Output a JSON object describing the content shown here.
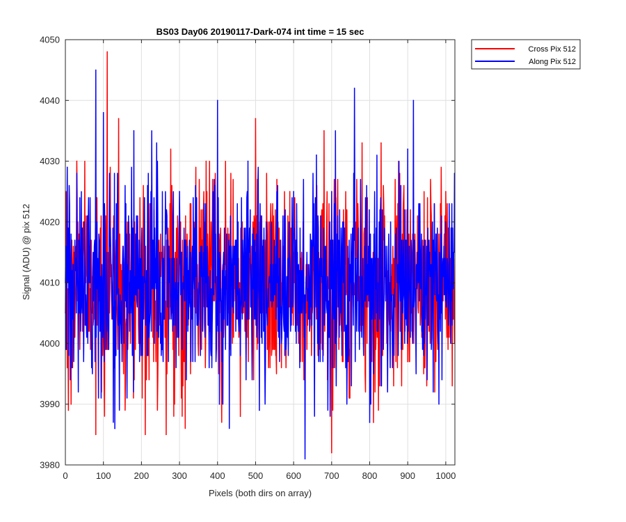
{
  "chart_data": {
    "type": "line",
    "title": "BS03 Day06 20190117-Dark-074 int time = 15 sec",
    "xlabel": "Pixels (both dirs on array)",
    "ylabel": "Signal (ADU) @ pix 512",
    "xlim": [
      0,
      1024
    ],
    "ylim": [
      3980,
      4050
    ],
    "xticks": [
      0,
      100,
      200,
      300,
      400,
      500,
      600,
      700,
      800,
      900,
      1000
    ],
    "yticks": [
      3980,
      3990,
      4000,
      4010,
      4020,
      4030,
      4040,
      4050
    ],
    "grid": true,
    "legend_position": "outside-top-right",
    "noise_model": {
      "mean": 4010,
      "sd": 8
    },
    "series": [
      {
        "name": "Cross Pix 512",
        "color": "#ff0000",
        "points": [
          [
            0,
            4005
          ],
          [
            5,
            3996
          ],
          [
            8,
            3989
          ],
          [
            15,
            3990
          ],
          [
            30,
            4030
          ],
          [
            80,
            3985
          ],
          [
            110,
            4048
          ],
          [
            140,
            4037
          ],
          [
            210,
            3985
          ],
          [
            265,
            3985
          ],
          [
            300,
            4017
          ],
          [
            370,
            4030
          ],
          [
            460,
            3988
          ],
          [
            500,
            4037
          ],
          [
            590,
            4025
          ],
          [
            640,
            4005
          ],
          [
            680,
            4035
          ],
          [
            700,
            3982
          ],
          [
            780,
            4033
          ],
          [
            810,
            3987
          ],
          [
            830,
            4033
          ],
          [
            870,
            4017
          ],
          [
            900,
            3997
          ],
          [
            1000,
            4025
          ],
          [
            1024,
            4000
          ]
        ]
      },
      {
        "name": "Along Pix 512",
        "color": "#0000ff",
        "points": [
          [
            0,
            4010
          ],
          [
            5,
            4029
          ],
          [
            50,
            4020
          ],
          [
            80,
            4045
          ],
          [
            100,
            4038
          ],
          [
            130,
            4041
          ],
          [
            130,
            3986
          ],
          [
            180,
            4035
          ],
          [
            240,
            4033
          ],
          [
            300,
            4025
          ],
          [
            400,
            4040
          ],
          [
            405,
            3990
          ],
          [
            480,
            4030
          ],
          [
            510,
            3989
          ],
          [
            600,
            4025
          ],
          [
            630,
            3981
          ],
          [
            660,
            4031
          ],
          [
            700,
            4025
          ],
          [
            760,
            4042
          ],
          [
            800,
            3987
          ],
          [
            900,
            4032
          ],
          [
            915,
            4040
          ],
          [
            1000,
            4020
          ],
          [
            1024,
            4028
          ]
        ]
      }
    ]
  }
}
